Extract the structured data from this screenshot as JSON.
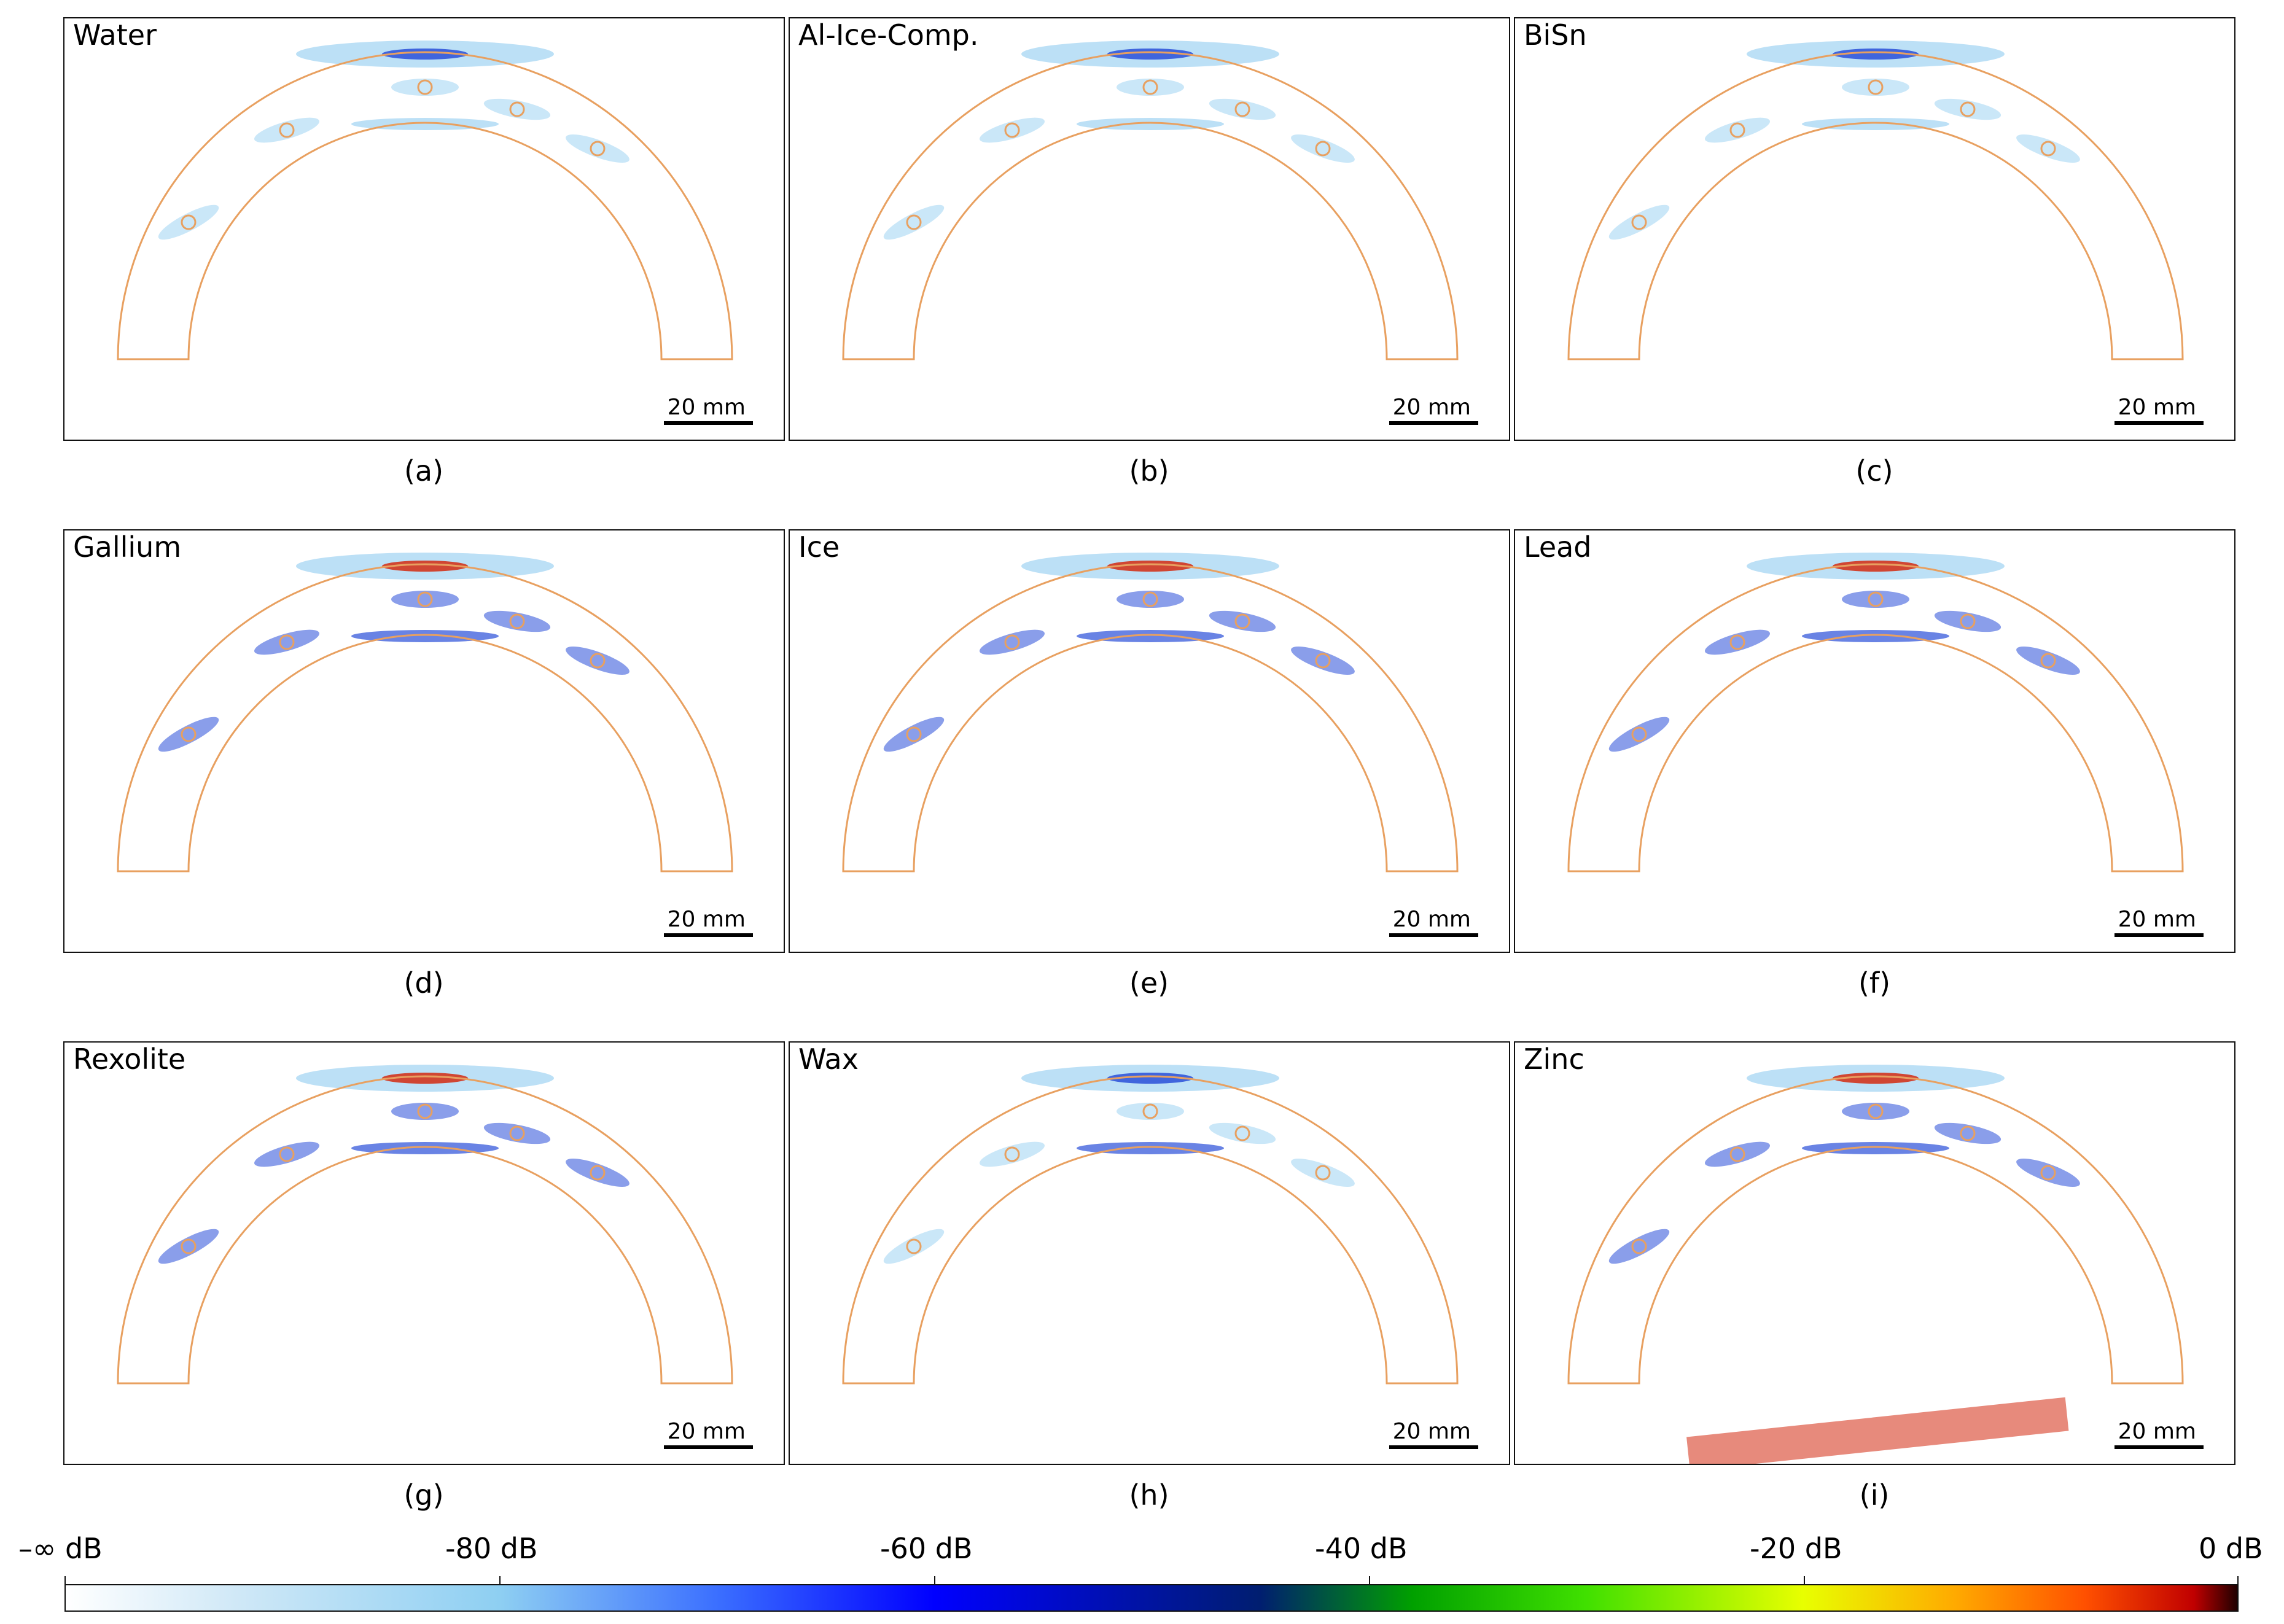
{
  "panels": [
    {
      "title": "Water",
      "caption": "(a)",
      "scale": "20 mm"
    },
    {
      "title": "Al-Ice-Comp.",
      "caption": "(b)",
      "scale": "20 mm"
    },
    {
      "title": "BiSn",
      "caption": "(c)",
      "scale": "20 mm"
    },
    {
      "title": "Gallium",
      "caption": "(d)",
      "scale": "20 mm"
    },
    {
      "title": "Ice",
      "caption": "(e)",
      "scale": "20 mm"
    },
    {
      "title": "Lead",
      "caption": "(f)",
      "scale": "20 mm"
    },
    {
      "title": "Rexolite",
      "caption": "(g)",
      "scale": "20 mm"
    },
    {
      "title": "Wax",
      "caption": "(h)",
      "scale": "20 mm"
    },
    {
      "title": "Zinc",
      "caption": "(i)",
      "scale": "20 mm"
    }
  ],
  "colorbar": {
    "labels": [
      "–∞ dB",
      "-80 dB",
      "-60 dB",
      "-40 dB",
      "-20 dB",
      "0 dB"
    ]
  },
  "colors": {
    "outline": "#e8a060",
    "weak": "#9fd3f2",
    "mid": "#2a4fd8",
    "strong": "#d42a10"
  }
}
